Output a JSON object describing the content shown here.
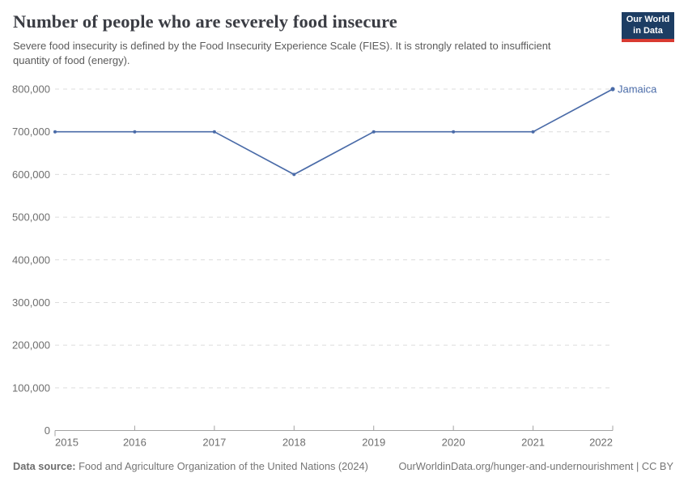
{
  "header": {
    "title": "Number of people who are severely food insecure",
    "subtitle": "Severe food insecurity is defined by the Food Insecurity Experience Scale (FIES). It is strongly related to insufficient quantity of food (energy).",
    "logo": {
      "line1": "Our World",
      "line2": "in Data",
      "bg_color": "#1d3d63",
      "accent_color": "#d93a31"
    }
  },
  "chart_data": {
    "type": "line",
    "x": [
      2015,
      2016,
      2017,
      2018,
      2019,
      2020,
      2021,
      2022
    ],
    "series": [
      {
        "name": "Jamaica",
        "color": "#4a6ba8",
        "values": [
          700000,
          700000,
          700000,
          600000,
          700000,
          700000,
          700000,
          800000
        ]
      }
    ],
    "title": "Number of people who are severely food insecure",
    "xlabel": "",
    "ylabel": "",
    "ylim": [
      0,
      800000
    ],
    "ytick_step": 100000,
    "ytick_labels": [
      "0",
      "100,000",
      "200,000",
      "300,000",
      "400,000",
      "500,000",
      "600,000",
      "700,000",
      "800,000"
    ],
    "grid": "horizontal-dashed",
    "legend_position": "end-of-line-label",
    "colors": {
      "grid": "#dcdcdc",
      "axis": "#a3a3a3",
      "tick": "#a3a3a3",
      "axis_text": "#6e6e6e"
    }
  },
  "footer": {
    "source_label": "Data source:",
    "source_text": " Food and Agriculture Organization of the United Nations (2024)",
    "link_text": "OurWorldinData.org/hunger-and-undernourishment | CC BY"
  }
}
